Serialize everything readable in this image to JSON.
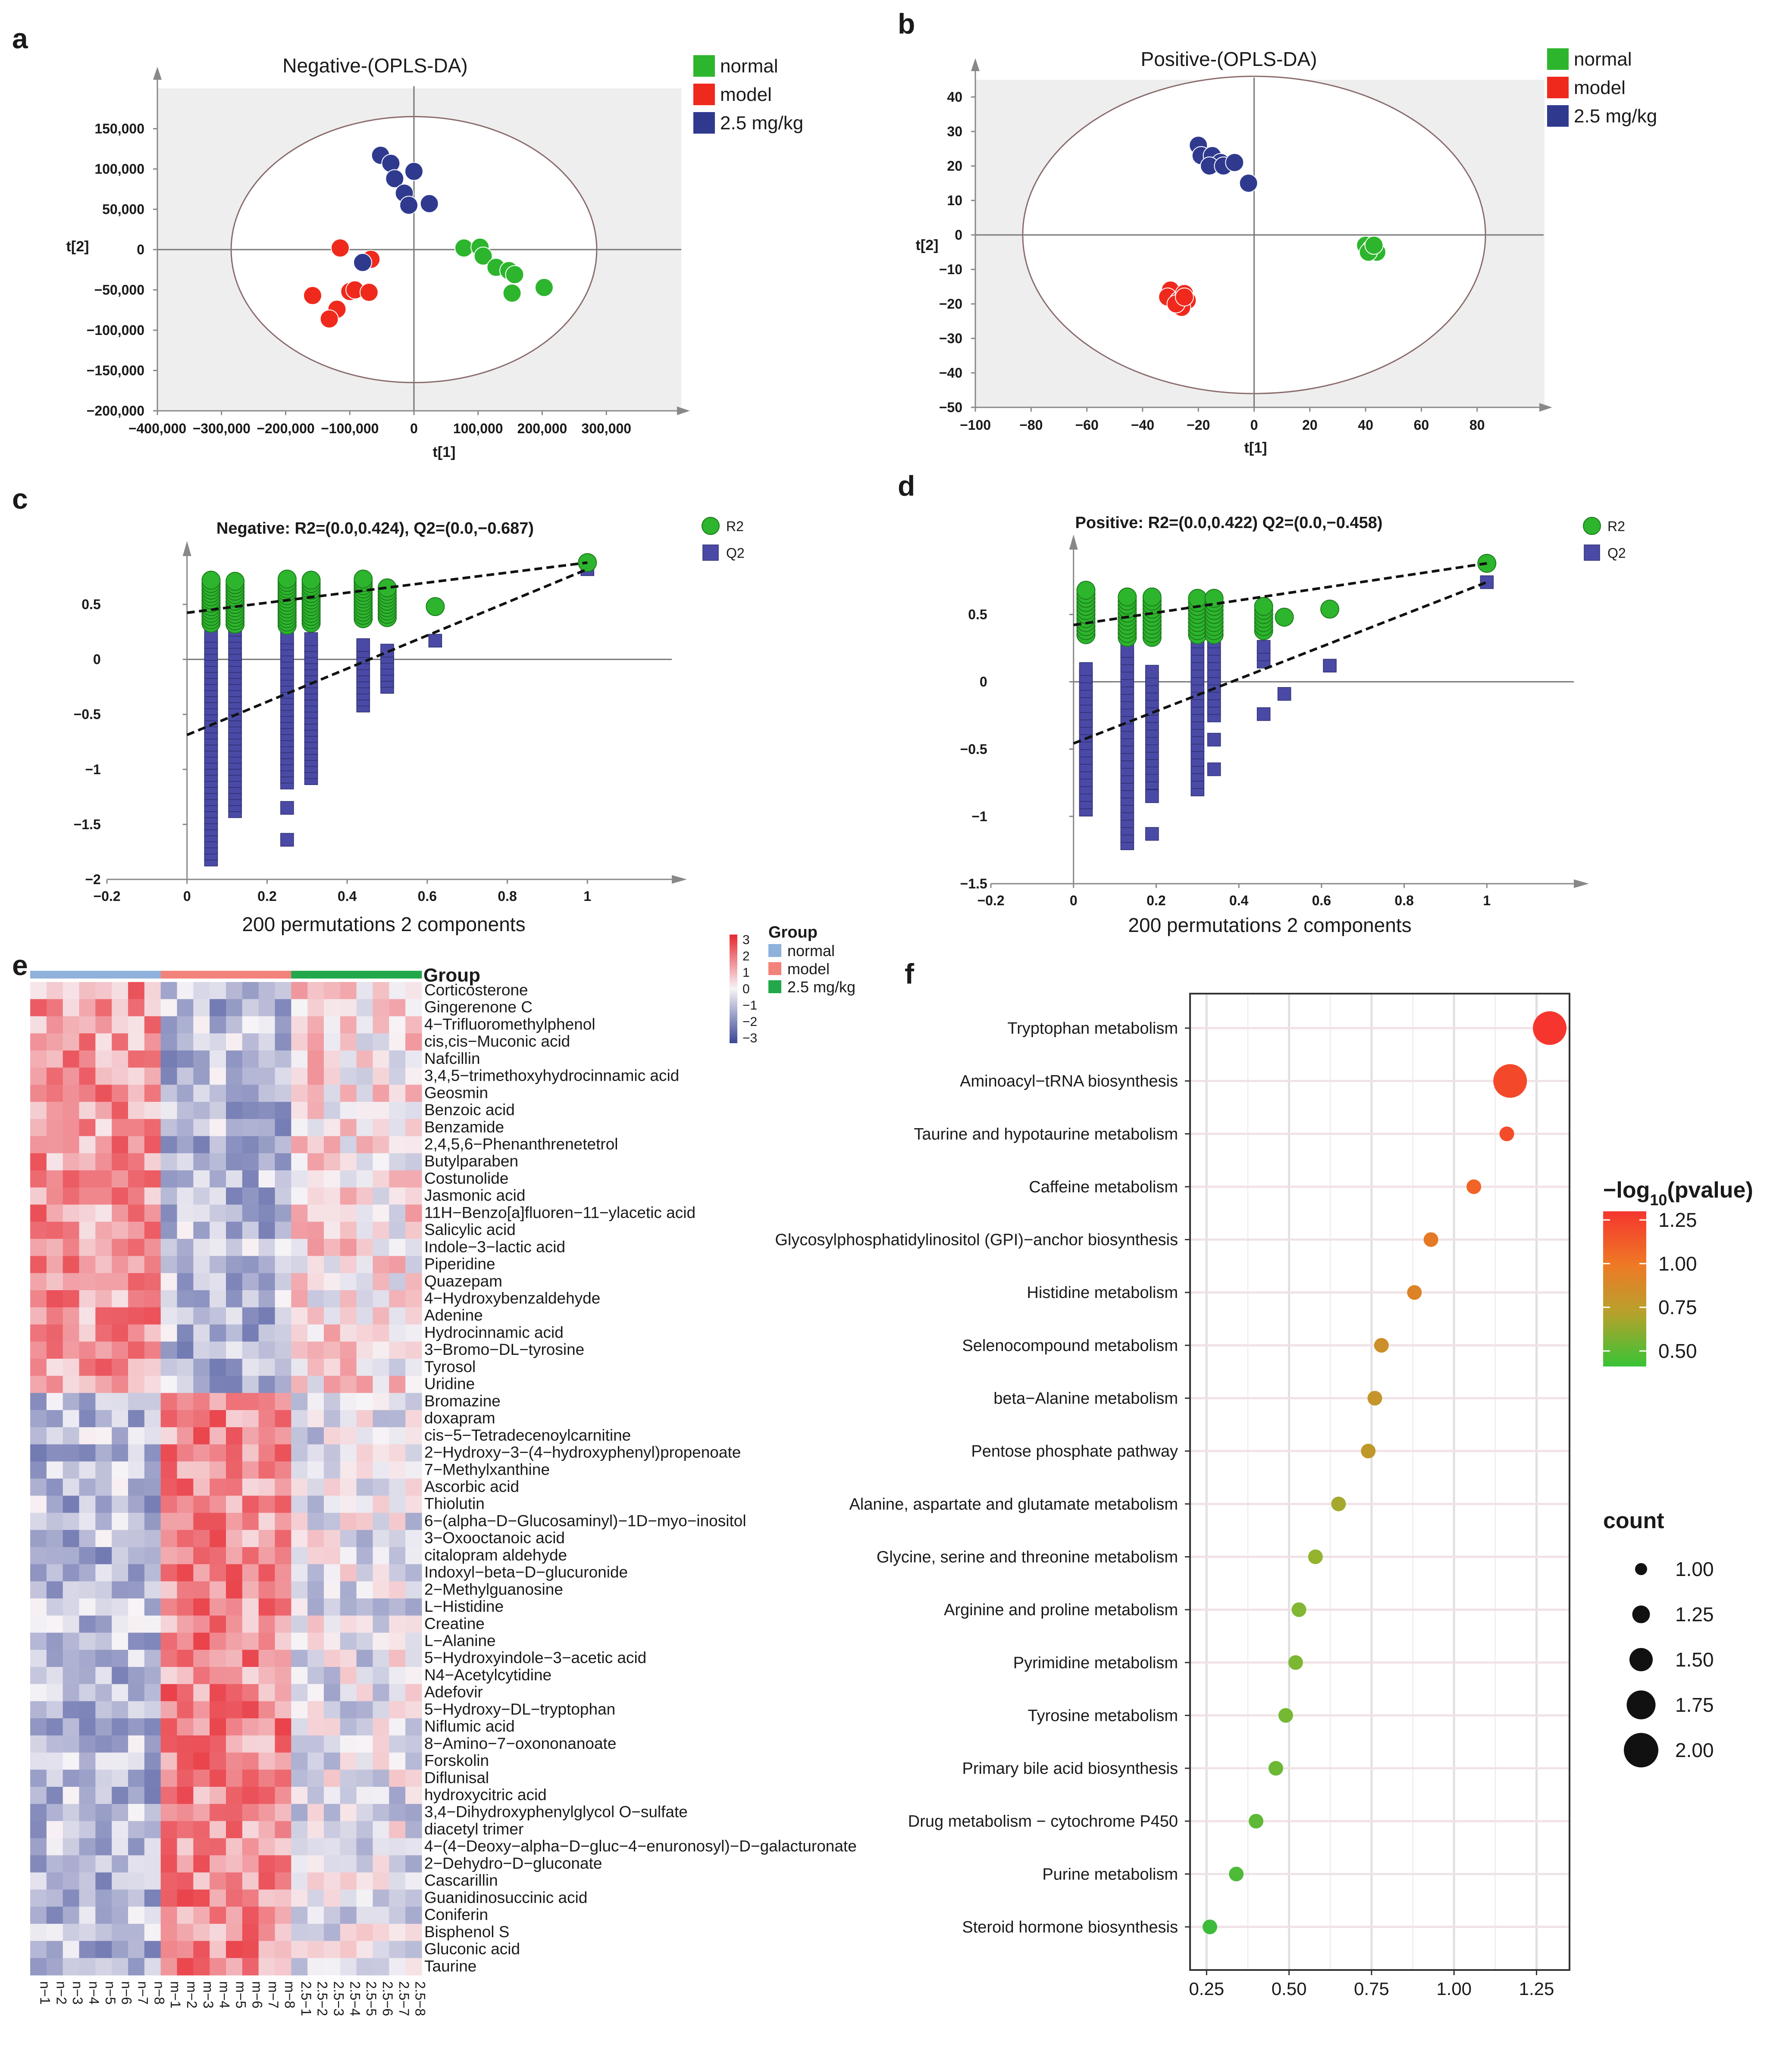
{
  "chart_data": [
    {
      "id": "a",
      "panel_label": "a",
      "type": "scatter",
      "title": "Negative-(OPLS-DA)",
      "xlabel": "t[1]",
      "ylabel": "t[2]",
      "xlim": [
        -400000,
        400000
      ],
      "ylim": [
        -200000,
        200000
      ],
      "x_ticks": [
        -400000,
        -300000,
        -200000,
        -100000,
        0,
        100000,
        200000,
        300000
      ],
      "x_tick_labels": [
        "−400,000",
        "−300,000",
        "−200,000",
        "−100,000",
        "0",
        "100,000",
        "200,000",
        "300,000"
      ],
      "y_ticks": [
        150000,
        100000,
        50000,
        0,
        -50000,
        -100000,
        -150000,
        -200000
      ],
      "y_tick_labels": [
        "150,000",
        "100,000",
        "50,000",
        "0",
        "−50,000",
        "−100,000",
        "−150,000",
        "−200,000"
      ],
      "ellipse": {
        "cx": 0,
        "cy": 0,
        "rx": 285000,
        "ry": 165000
      },
      "legend": [
        {
          "label": "normal",
          "color": "#2db52d"
        },
        {
          "label": "model",
          "color": "#f0291d"
        },
        {
          "label": "2.5 mg/kg",
          "color": "#2f3a8f"
        }
      ],
      "series": [
        {
          "name": "normal",
          "color": "#2db52d",
          "points": [
            [
              78000,
              2000
            ],
            [
              103000,
              3000
            ],
            [
              108000,
              -8000
            ],
            [
              128000,
              -22000
            ],
            [
              148000,
              -26000
            ],
            [
              157000,
              -31000
            ],
            [
              203000,
              -47000
            ],
            [
              153000,
              -54000
            ]
          ]
        },
        {
          "name": "model",
          "color": "#f0291d",
          "points": [
            [
              -115000,
              2000
            ],
            [
              -67000,
              -12000
            ],
            [
              -158000,
              -57000
            ],
            [
              -100000,
              -52000
            ],
            [
              -92000,
              -50000
            ],
            [
              -70000,
              -53000
            ],
            [
              -120000,
              -74000
            ],
            [
              -132000,
              -86000
            ]
          ]
        },
        {
          "name": "2.5 mg/kg",
          "color": "#2f3a8f",
          "points": [
            [
              -52000,
              117000
            ],
            [
              -36000,
              107000
            ],
            [
              0,
              97000
            ],
            [
              -30000,
              88000
            ],
            [
              -15000,
              70000
            ],
            [
              -8000,
              55000
            ],
            [
              24000,
              57000
            ],
            [
              -80000,
              -16000
            ]
          ]
        }
      ]
    },
    {
      "id": "b",
      "panel_label": "b",
      "type": "scatter",
      "title": "Positive-(OPLS-DA)",
      "xlabel": "t[1]",
      "ylabel": "t[2]",
      "xlim": [
        -100,
        100
      ],
      "ylim": [
        -50,
        45
      ],
      "x_ticks": [
        -100,
        -80,
        -60,
        -40,
        -20,
        0,
        20,
        40,
        60,
        80
      ],
      "x_tick_labels": [
        "−100",
        "−80",
        "−60",
        "−40",
        "−20",
        "0",
        "20",
        "40",
        "60",
        "80"
      ],
      "y_ticks": [
        40,
        30,
        20,
        10,
        0,
        -10,
        -20,
        -30,
        -40,
        -50
      ],
      "y_tick_labels": [
        "40",
        "30",
        "20",
        "10",
        "0",
        "−10",
        "−20",
        "−30",
        "−40",
        "−50"
      ],
      "ellipse": {
        "cx": 0,
        "cy": 0,
        "rx": 83,
        "ry": 46
      },
      "legend": [
        {
          "label": "normal",
          "color": "#2db52d"
        },
        {
          "label": "model",
          "color": "#f0291d"
        },
        {
          "label": "2.5 mg/kg",
          "color": "#2f3a8f"
        }
      ],
      "series": [
        {
          "name": "normal",
          "color": "#2db52d",
          "points": [
            [
              40,
              -3
            ],
            [
              42,
              -4
            ],
            [
              44,
              -5
            ],
            [
              41,
              -5
            ],
            [
              43,
              -3
            ]
          ]
        },
        {
          "name": "model",
          "color": "#f0291d",
          "points": [
            [
              -30,
              -16
            ],
            [
              -31,
              -18
            ],
            [
              -27,
              -19
            ],
            [
              -25,
              -17
            ],
            [
              -24,
              -19
            ],
            [
              -26,
              -21
            ],
            [
              -28,
              -20
            ],
            [
              -25,
              -18
            ]
          ]
        },
        {
          "name": "2.5 mg/kg",
          "color": "#2f3a8f",
          "points": [
            [
              -20,
              26
            ],
            [
              -19,
              23
            ],
            [
              -15,
              23
            ],
            [
              -12,
              21
            ],
            [
              -16,
              20
            ],
            [
              -11,
              20
            ],
            [
              -7,
              21
            ],
            [
              -2,
              15
            ]
          ]
        }
      ]
    },
    {
      "id": "c",
      "panel_label": "c",
      "type": "scatter",
      "title": "Negative: R2=(0.0,0.424), Q2=(0.0,−0.687)",
      "xlabel": "200 permutations 2 components",
      "ylabel": "",
      "xlim": [
        -0.2,
        1.2
      ],
      "ylim": [
        -2,
        0.9
      ],
      "x_ticks": [
        -0.2,
        0,
        0.2,
        0.4,
        0.6,
        0.8,
        1
      ],
      "x_tick_labels": [
        "−0.2",
        "0",
        "0.2",
        "0.4",
        "0.6",
        "0.8",
        "1"
      ],
      "y_ticks": [
        0.5,
        0,
        -0.5,
        -1,
        -1.5,
        -2
      ],
      "y_tick_labels": [
        "0.5",
        "0",
        "−0.5",
        "−1",
        "−1.5",
        "−2"
      ],
      "legend": [
        {
          "label": "R2",
          "color": "#2db52d",
          "shape": "circle"
        },
        {
          "label": "Q2",
          "color": "#4a4aa6",
          "shape": "square"
        }
      ],
      "r2_columns": [
        {
          "x": 0.06,
          "min": 0.33,
          "max": 0.73
        },
        {
          "x": 0.12,
          "min": 0.32,
          "max": 0.72
        },
        {
          "x": 0.25,
          "min": 0.31,
          "max": 0.74
        },
        {
          "x": 0.31,
          "min": 0.33,
          "max": 0.72
        },
        {
          "x": 0.44,
          "min": 0.37,
          "max": 0.74
        },
        {
          "x": 0.5,
          "min": 0.38,
          "max": 0.67
        }
      ],
      "q2_columns": [
        {
          "x": 0.06,
          "min": -1.82,
          "max": 0.25
        },
        {
          "x": 0.12,
          "min": -1.38,
          "max": 0.28
        },
        {
          "x": 0.25,
          "min": -1.12,
          "max": 0.25
        },
        {
          "x": 0.31,
          "min": -1.08,
          "max": 0.22
        },
        {
          "x": 0.44,
          "min": -0.42,
          "max": 0.16
        },
        {
          "x": 0.5,
          "min": -0.25,
          "max": 0.12
        }
      ],
      "r2_points": [
        {
          "x": 0.62,
          "y": 0.48
        },
        {
          "x": 1,
          "y": 0.88
        }
      ],
      "q2_points": [
        {
          "x": 0.25,
          "y": -1.35
        },
        {
          "x": 0.25,
          "y": -1.64
        },
        {
          "x": 0.62,
          "y": 0.17
        },
        {
          "x": 1,
          "y": 0.82
        }
      ],
      "r2_line": {
        "intercept": 0.424,
        "end": 0.88
      },
      "q2_line": {
        "intercept": -0.687,
        "end": 0.82
      }
    },
    {
      "id": "d",
      "panel_label": "d",
      "type": "scatter",
      "title": "Positive: R2=(0.0,0.422) Q2=(0.0,−0.458)",
      "xlabel": "200 permutations 2 components",
      "ylabel": "",
      "xlim": [
        -0.2,
        1.2
      ],
      "ylim": [
        -1.5,
        0.95
      ],
      "x_ticks": [
        -0.2,
        0,
        0.2,
        0.4,
        0.6,
        0.8,
        1
      ],
      "x_tick_labels": [
        "−0.2",
        "0",
        "0.2",
        "0.4",
        "0.6",
        "0.8",
        "1"
      ],
      "y_ticks": [
        0.5,
        0,
        -0.5,
        -1,
        -1.5
      ],
      "y_tick_labels": [
        "0.5",
        "0",
        "−0.5",
        "−1",
        "−1.5"
      ],
      "legend": [
        {
          "label": "R2",
          "color": "#2db52d",
          "shape": "circle"
        },
        {
          "label": "Q2",
          "color": "#4a4aa6",
          "shape": "square"
        }
      ],
      "r2_columns": [
        {
          "x": 0.03,
          "min": 0.35,
          "max": 0.7
        },
        {
          "x": 0.13,
          "min": 0.33,
          "max": 0.65
        },
        {
          "x": 0.19,
          "min": 0.33,
          "max": 0.63
        },
        {
          "x": 0.3,
          "min": 0.35,
          "max": 0.64
        },
        {
          "x": 0.34,
          "min": 0.35,
          "max": 0.62
        },
        {
          "x": 0.46,
          "min": 0.38,
          "max": 0.58
        }
      ],
      "q2_columns": [
        {
          "x": 0.03,
          "min": -0.95,
          "max": 0.1
        },
        {
          "x": 0.13,
          "min": -1.2,
          "max": 0.25
        },
        {
          "x": 0.19,
          "min": -0.75,
          "max": 0.1
        },
        {
          "x": 0.3,
          "min": -0.8,
          "max": 0.3
        },
        {
          "x": 0.34,
          "min": -0.25,
          "max": 0.3
        },
        {
          "x": 0.46,
          "min": 0.15,
          "max": 0.3
        }
      ],
      "r2_points": [
        {
          "x": 0.51,
          "y": 0.48
        },
        {
          "x": 0.62,
          "y": 0.54
        },
        {
          "x": 1,
          "y": 0.88
        }
      ],
      "q2_points": [
        {
          "x": 0.19,
          "y": -0.85
        },
        {
          "x": 0.19,
          "y": -1.13
        },
        {
          "x": 0.34,
          "y": -0.43
        },
        {
          "x": 0.34,
          "y": -0.65
        },
        {
          "x": 0.46,
          "y": -0.24
        },
        {
          "x": 0.51,
          "y": -0.09
        },
        {
          "x": 0.62,
          "y": 0.12
        },
        {
          "x": 1,
          "y": 0.74
        }
      ],
      "r2_line": {
        "intercept": 0.422,
        "end": 0.88
      },
      "q2_line": {
        "intercept": -0.458,
        "end": 0.74
      }
    },
    {
      "id": "e",
      "panel_label": "e",
      "type": "heatmap",
      "group_header": "Group",
      "groups": [
        {
          "label": "normal",
          "color": "#8fb1dc"
        },
        {
          "label": "model",
          "color": "#f2837a"
        },
        {
          "label": "2.5 mg/kg",
          "color": "#22a84a"
        }
      ],
      "color_scale": {
        "title": "Group",
        "ticks": [
          "3",
          "2",
          "1",
          "0",
          "−1",
          "−2",
          "−3"
        ],
        "low": "#3a4796",
        "mid": "#f7f4f7",
        "high": "#e8262f"
      },
      "columns": [
        "n−1",
        "n−2",
        "n−3",
        "n−4",
        "n−5",
        "n−6",
        "n−7",
        "n−8",
        "m−1",
        "m−2",
        "m−3",
        "m−4",
        "m−5",
        "m−6",
        "m−7",
        "m−8",
        "2.5−1",
        "2.5−2",
        "2.5−3",
        "2.5−4",
        "2.5−5",
        "2.5−6",
        "2.5−7",
        "2.5−8"
      ],
      "rows": [
        "Corticosterone",
        "Gingerenone C",
        "4−Trifluoromethylphenol",
        "cis,cis−Muconic acid",
        "Nafcillin",
        "3,4,5−trimethoxyhydrocinnamic acid",
        "Geosmin",
        "Benzoic acid",
        "Benzamide",
        "2,4,5,6−Phenanthrenetetrol",
        "Butylparaben",
        "Costunolide",
        "Jasmonic acid",
        "11H−Benzo[a]fluoren−11−ylacetic acid",
        "Salicylic acid",
        "Indole−3−lactic acid",
        "Piperidine",
        "Quazepam",
        "4−Hydroxybenzaldehyde",
        "Adenine",
        "Hydrocinnamic acid",
        "3−Bromo−DL−tyrosine",
        "Tyrosol",
        "Uridine",
        "Bromazine",
        "doxapram",
        "cis−5−Tetradecenoylcarnitine",
        "2−Hydroxy−3−(4−hydroxyphenyl)propenoate",
        "7−Methylxanthine",
        "Ascorbic acid",
        "Thiolutin",
        "6−(alpha−D−Glucosaminyl)−1D−myo−inositol",
        "3−Oxooctanoic acid",
        "citalopram aldehyde",
        "Indoxyl−beta−D−glucuronide",
        "2−Methylguanosine",
        "L−Histidine",
        "Creatine",
        "L−Alanine",
        "5−Hydroxyindole−3−acetic acid",
        "N4−Acetylcytidine",
        "Adefovir",
        "5−Hydroxy−DL−tryptophan",
        "Niflumic acid",
        "8−Amino−7−oxononanoate",
        "Forskolin",
        "Diflunisal",
        "hydroxycitric acid",
        "3,4−Dihydroxyphenylglycol O−sulfate",
        "diacetyl trimer",
        "4−(4−Deoxy−alpha−D−gluc−4−enuronosyl)−D−galacturonate",
        "2−Dehydro−D−gluconate",
        "Cascarillin",
        "Guanidinosuccinic acid",
        "Coniferin",
        "Bisphenol S",
        "Gluconic acid",
        "Taurine"
      ]
    },
    {
      "id": "f",
      "panel_label": "f",
      "type": "scatter",
      "xlabel": "",
      "xlim": [
        0.2,
        1.35
      ],
      "x_ticks": [
        0.25,
        0.5,
        0.75,
        1.0,
        1.25
      ],
      "x_tick_labels": [
        "0.25",
        "0.50",
        "0.75",
        "1.00",
        "1.25"
      ],
      "pathways": [
        {
          "name": "Tryptophan metabolism",
          "x": 1.29,
          "count": 2,
          "neglogp": 1.3
        },
        {
          "name": "Aminoacyl−tRNA biosynthesis",
          "x": 1.17,
          "count": 2,
          "neglogp": 1.22
        },
        {
          "name": "Taurine and hypotaurine metabolism",
          "x": 1.16,
          "count": 1,
          "neglogp": 1.2
        },
        {
          "name": "Caffeine metabolism",
          "x": 1.06,
          "count": 1,
          "neglogp": 1.1
        },
        {
          "name": "Glycosylphosphatidylinositol (GPI)−anchor biosynthesis",
          "x": 0.93,
          "count": 1,
          "neglogp": 0.98
        },
        {
          "name": "Histidine metabolism",
          "x": 0.88,
          "count": 1,
          "neglogp": 0.92
        },
        {
          "name": "Selenocompound metabolism",
          "x": 0.78,
          "count": 1,
          "neglogp": 0.83
        },
        {
          "name": "beta−Alanine metabolism",
          "x": 0.76,
          "count": 1,
          "neglogp": 0.8
        },
        {
          "name": "Pentose phosphate pathway",
          "x": 0.74,
          "count": 1,
          "neglogp": 0.78
        },
        {
          "name": "Alanine, aspartate and glutamate metabolism",
          "x": 0.65,
          "count": 1,
          "neglogp": 0.68
        },
        {
          "name": "Glycine, serine and threonine metabolism",
          "x": 0.58,
          "count": 1,
          "neglogp": 0.62
        },
        {
          "name": "Arginine and proline metabolism",
          "x": 0.53,
          "count": 1,
          "neglogp": 0.55
        },
        {
          "name": "Pyrimidine metabolism",
          "x": 0.52,
          "count": 1,
          "neglogp": 0.53
        },
        {
          "name": "Tyrosine metabolism",
          "x": 0.49,
          "count": 1,
          "neglogp": 0.5
        },
        {
          "name": "Primary bile acid biosynthesis",
          "x": 0.46,
          "count": 1,
          "neglogp": 0.47
        },
        {
          "name": "Drug metabolism − cytochrome P450",
          "x": 0.4,
          "count": 1,
          "neglogp": 0.42
        },
        {
          "name": "Purine metabolism",
          "x": 0.34,
          "count": 1,
          "neglogp": 0.36
        },
        {
          "name": "Steroid hormone biosynthesis",
          "x": 0.26,
          "count": 1,
          "neglogp": 0.3
        }
      ],
      "color_legend": {
        "title": "−log10(pvalue)",
        "title_main": "−log",
        "title_sub": "10",
        "title_rest": "(pvalue)",
        "ticks": [
          "1.25",
          "1.00",
          "0.75",
          "0.50"
        ],
        "tick_values": [
          1.25,
          1.0,
          0.75,
          0.5
        ]
      },
      "size_legend": {
        "title": "count",
        "values": [
          "1.00",
          "1.25",
          "1.50",
          "1.75",
          "2.00"
        ]
      }
    }
  ]
}
